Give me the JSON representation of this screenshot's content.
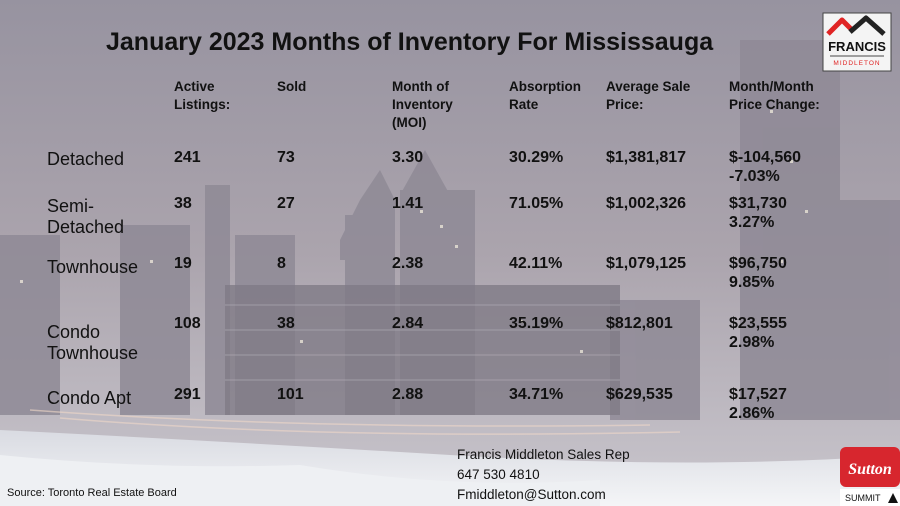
{
  "title": "January 2023 Months of Inventory For Mississauga",
  "headers": {
    "active": [
      "Active",
      "Listings:"
    ],
    "sold": [
      "Sold"
    ],
    "moi": [
      "Month of",
      "Inventory",
      "(MOI)"
    ],
    "absorption": [
      "Absorption",
      "Rate"
    ],
    "avg_price": [
      "Average Sale",
      "Price:"
    ],
    "change": [
      "Month/Month",
      "Price Change:"
    ]
  },
  "rows": [
    {
      "label": [
        "Detached"
      ],
      "active": "241",
      "sold": "73",
      "moi": "3.30",
      "absorption": "30.29%",
      "avg_price": "$1,381,817",
      "change": [
        "$-104,560",
        "-7.03%"
      ]
    },
    {
      "label": [
        "Semi-",
        "Detached"
      ],
      "active": "38",
      "sold": "27",
      "moi": "1.41",
      "absorption": "71.05%",
      "avg_price": "$1,002,326",
      "change": [
        "$31,730",
        "3.27%"
      ]
    },
    {
      "label": [
        "Townhouse"
      ],
      "active": "19",
      "sold": "8",
      "moi": "2.38",
      "absorption": "42.11%",
      "avg_price": "$1,079,125",
      "change": [
        "$96,750",
        "9.85%"
      ]
    },
    {
      "label": [
        "Condo",
        "Townhouse"
      ],
      "active": "108",
      "sold": "38",
      "moi": "2.84",
      "absorption": "35.19%",
      "avg_price": "$812,801",
      "change": [
        "$23,555",
        "2.98%"
      ]
    },
    {
      "label": [
        "Condo Apt"
      ],
      "active": "291",
      "sold": "101",
      "moi": "2.88",
      "absorption": "34.71%",
      "avg_price": "$629,535",
      "change": [
        "$17,527",
        "2.86%"
      ]
    }
  ],
  "contact": {
    "name": "Francis Middleton Sales Rep",
    "phone": "647 530 4810",
    "email": "Fmiddleton@Sutton.com"
  },
  "source": "Source: Toronto Real Estate Board",
  "logos": {
    "francis": {
      "line1": "FRANCIS",
      "line2": "MIDDLETON"
    },
    "sutton": {
      "line1": "Sutton",
      "line2": "SUMMIT"
    }
  },
  "colors": {
    "accent_red": "#e02424",
    "logo_dark": "#222222",
    "sutton_red": "#d7262e"
  }
}
